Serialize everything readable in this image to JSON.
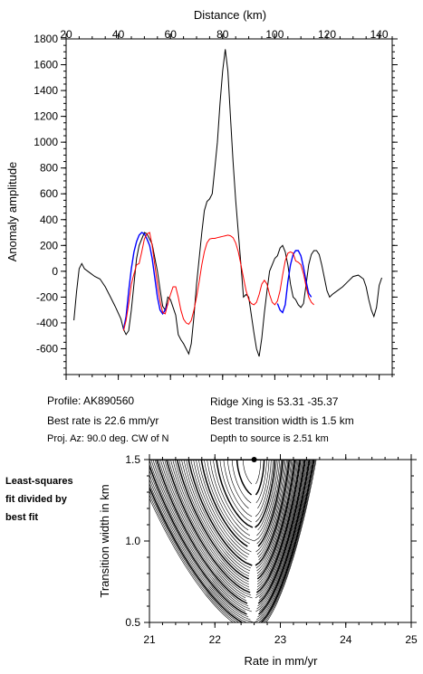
{
  "chart_data": [
    {
      "type": "line",
      "xlabel": "Distance (km)",
      "ylabel": "Anomaly amplitude",
      "xlim": [
        20,
        145
      ],
      "ylim": [
        -800,
        1800
      ],
      "x_ticks": [
        20,
        40,
        60,
        80,
        100,
        120,
        140
      ],
      "y_ticks": [
        -600,
        -400,
        -200,
        0,
        200,
        400,
        600,
        800,
        1000,
        1200,
        1400,
        1600,
        1800
      ],
      "x_axis_position": "top",
      "series": [
        {
          "role": "observed",
          "color": "#000000",
          "points": [
            [
              23,
              -380
            ],
            [
              24,
              -160
            ],
            [
              25,
              20
            ],
            [
              26,
              60
            ],
            [
              27,
              20
            ],
            [
              29,
              -10
            ],
            [
              31,
              -40
            ],
            [
              33,
              -60
            ],
            [
              35,
              -120
            ],
            [
              37,
              -200
            ],
            [
              39,
              -280
            ],
            [
              41,
              -370
            ],
            [
              42,
              -450
            ],
            [
              43,
              -490
            ],
            [
              44,
              -460
            ],
            [
              45,
              -300
            ],
            [
              46,
              -100
            ],
            [
              47,
              100
            ],
            [
              48,
              200
            ],
            [
              50,
              300
            ],
            [
              51,
              290
            ],
            [
              53,
              210
            ],
            [
              55,
              0
            ],
            [
              56,
              -140
            ],
            [
              57,
              -270
            ],
            [
              58,
              -300
            ],
            [
              59,
              -200
            ],
            [
              60,
              -220
            ],
            [
              61,
              -280
            ],
            [
              62,
              -340
            ],
            [
              63,
              -490
            ],
            [
              64,
              -530
            ],
            [
              65,
              -560
            ],
            [
              66,
              -600
            ],
            [
              67,
              -640
            ],
            [
              68,
              -560
            ],
            [
              69,
              -350
            ],
            [
              70,
              -100
            ],
            [
              71,
              100
            ],
            [
              72,
              300
            ],
            [
              73,
              470
            ],
            [
              74,
              540
            ],
            [
              75,
              560
            ],
            [
              76,
              600
            ],
            [
              77,
              800
            ],
            [
              78,
              1000
            ],
            [
              79,
              1300
            ],
            [
              80,
              1550
            ],
            [
              81,
              1720
            ],
            [
              82,
              1550
            ],
            [
              83,
              1200
            ],
            [
              84,
              850
            ],
            [
              85,
              550
            ],
            [
              86,
              300
            ],
            [
              87,
              50
            ],
            [
              88,
              -200
            ],
            [
              89,
              -180
            ],
            [
              90,
              -200
            ],
            [
              91,
              -340
            ],
            [
              92,
              -480
            ],
            [
              93,
              -600
            ],
            [
              94,
              -660
            ],
            [
              95,
              -520
            ],
            [
              96,
              -320
            ],
            [
              97,
              -150
            ],
            [
              98,
              0
            ],
            [
              99,
              50
            ],
            [
              100,
              100
            ],
            [
              101,
              120
            ],
            [
              102,
              180
            ],
            [
              103,
              200
            ],
            [
              104,
              150
            ],
            [
              105,
              50
            ],
            [
              106,
              -100
            ],
            [
              107,
              -200
            ],
            [
              108,
              -220
            ],
            [
              109,
              -260
            ],
            [
              110,
              -280
            ],
            [
              111,
              -250
            ],
            [
              112,
              -100
            ],
            [
              113,
              50
            ],
            [
              114,
              130
            ],
            [
              115,
              160
            ],
            [
              116,
              160
            ],
            [
              117,
              130
            ],
            [
              118,
              50
            ],
            [
              119,
              -50
            ],
            [
              120,
              -150
            ],
            [
              121,
              -200
            ],
            [
              122,
              -180
            ],
            [
              124,
              -150
            ],
            [
              126,
              -120
            ],
            [
              128,
              -80
            ],
            [
              130,
              -40
            ],
            [
              132,
              -30
            ],
            [
              134,
              -60
            ],
            [
              135,
              -120
            ],
            [
              136,
              -220
            ],
            [
              137,
              -300
            ],
            [
              138,
              -350
            ],
            [
              139,
              -280
            ],
            [
              140,
              -110
            ],
            [
              141,
              -50
            ]
          ]
        },
        {
          "role": "blue-fit",
          "color": "#0000ff",
          "points": [
            [
              42,
              -450
            ],
            [
              43,
              -350
            ],
            [
              44,
              -150
            ],
            [
              45,
              20
            ],
            [
              46,
              150
            ],
            [
              47,
              230
            ],
            [
              48,
              280
            ],
            [
              49,
              300
            ],
            [
              50,
              290
            ],
            [
              51,
              250
            ],
            [
              52,
              200
            ],
            [
              53,
              100
            ],
            [
              54,
              -50
            ],
            [
              55,
              -200
            ],
            [
              56,
              -300
            ],
            [
              57,
              -330
            ],
            [
              58,
              -300
            ],
            [
              59,
              -250
            ],
            [
              101,
              -250
            ],
            [
              102,
              -300
            ],
            [
              103,
              -320
            ],
            [
              104,
              -260
            ],
            [
              105,
              -80
            ],
            [
              106,
              50
            ],
            [
              107,
              130
            ],
            [
              108,
              160
            ],
            [
              109,
              160
            ],
            [
              110,
              120
            ],
            [
              111,
              30
            ],
            [
              112,
              -80
            ],
            [
              113,
              -170
            ],
            [
              114,
              -200
            ]
          ]
        },
        {
          "role": "red-model",
          "color": "#ff0000",
          "points": [
            [
              42,
              -460
            ],
            [
              43,
              -380
            ],
            [
              44,
              -250
            ],
            [
              45,
              -100
            ],
            [
              46,
              -20
            ],
            [
              47,
              50
            ],
            [
              48,
              60
            ],
            [
              49,
              150
            ],
            [
              50,
              250
            ],
            [
              51,
              290
            ],
            [
              52,
              300
            ],
            [
              53,
              200
            ],
            [
              54,
              50
            ],
            [
              55,
              -100
            ],
            [
              56,
              -230
            ],
            [
              57,
              -320
            ],
            [
              58,
              -330
            ],
            [
              59,
              -250
            ],
            [
              60,
              -180
            ],
            [
              61,
              -120
            ],
            [
              62,
              -120
            ],
            [
              63,
              -200
            ],
            [
              64,
              -300
            ],
            [
              65,
              -370
            ],
            [
              66,
              -400
            ],
            [
              67,
              -410
            ],
            [
              68,
              -380
            ],
            [
              69,
              -300
            ],
            [
              70,
              -200
            ],
            [
              71,
              -80
            ],
            [
              72,
              50
            ],
            [
              73,
              150
            ],
            [
              74,
              220
            ],
            [
              75,
              250
            ],
            [
              76,
              255
            ],
            [
              77,
              255
            ],
            [
              78,
              260
            ],
            [
              79,
              265
            ],
            [
              80,
              270
            ],
            [
              81,
              275
            ],
            [
              82,
              280
            ],
            [
              83,
              275
            ],
            [
              84,
              260
            ],
            [
              85,
              220
            ],
            [
              86,
              150
            ],
            [
              87,
              50
            ],
            [
              88,
              -50
            ],
            [
              89,
              -150
            ],
            [
              90,
              -220
            ],
            [
              91,
              -250
            ],
            [
              92,
              -260
            ],
            [
              93,
              -240
            ],
            [
              94,
              -180
            ],
            [
              95,
              -100
            ],
            [
              96,
              -70
            ],
            [
              97,
              -100
            ],
            [
              98,
              -180
            ],
            [
              99,
              -240
            ],
            [
              100,
              -260
            ],
            [
              101,
              -230
            ],
            [
              102,
              -150
            ],
            [
              103,
              -30
            ],
            [
              104,
              80
            ],
            [
              105,
              140
            ],
            [
              106,
              150
            ],
            [
              107,
              140
            ],
            [
              108,
              80
            ],
            [
              109,
              70
            ],
            [
              110,
              50
            ],
            [
              111,
              -20
            ],
            [
              112,
              -120
            ],
            [
              113,
              -200
            ],
            [
              114,
              -240
            ],
            [
              115,
              -260
            ]
          ]
        }
      ]
    },
    {
      "type": "contour",
      "xlabel": "Rate in mm/yr",
      "ylabel": "Transition width in km",
      "xlim": [
        21,
        25
      ],
      "ylim": [
        0.5,
        1.5
      ],
      "x_ticks": [
        21,
        22,
        23,
        24,
        25
      ],
      "y_ticks": [
        0.5,
        1.0,
        1.5
      ],
      "best_fit_point": [
        22.6,
        1.5
      ]
    }
  ],
  "top": {
    "x_ticklabels": [
      "20",
      "40",
      "60",
      "80",
      "100",
      "120",
      "140"
    ],
    "y_ticklabels": [
      "-600",
      "-400",
      "-200",
      "0",
      "200",
      "400",
      "600",
      "800",
      "1000",
      "1200",
      "1400",
      "1600",
      "1800"
    ]
  },
  "bottom": {
    "x_ticklabels": [
      "21",
      "22",
      "23",
      "24",
      "25"
    ],
    "y_ticklabels": [
      "0.5",
      "1.0",
      "1.5"
    ]
  },
  "info": {
    "profile": "Profile: AK890560",
    "rate": "Best rate is 22.6 mm/yr",
    "proj": "Proj. Az: 90.0 deg. CW of N",
    "ridge": "Ridge Xing is 53.31 -35.37",
    "width": "Best transition width is 1.5 km",
    "depth": "Depth to source is   2.51 km"
  },
  "side_note": {
    "line1": "Least-squares",
    "line2": "fit divided by",
    "line3": "best fit"
  }
}
